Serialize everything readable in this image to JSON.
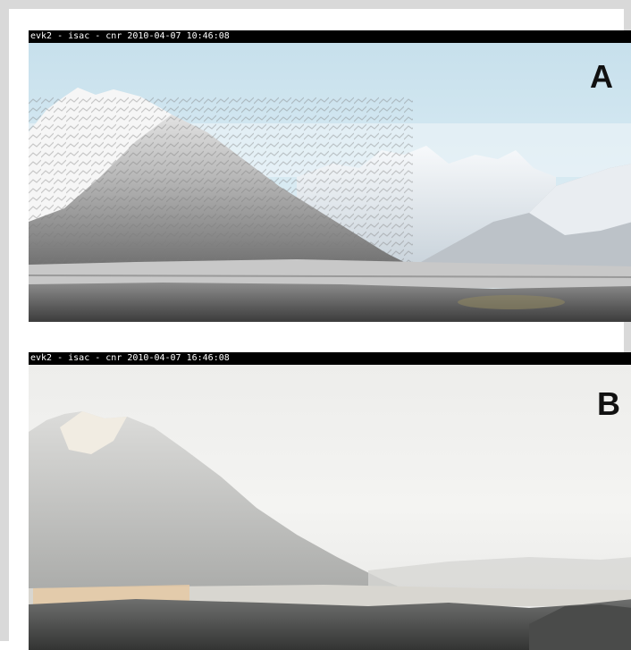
{
  "panels": [
    {
      "id": "A",
      "caption": "evk2 - isac - cnr 2010-04-07 10:46:08",
      "label": "A",
      "scene": "clear-sky-mountain-view"
    },
    {
      "id": "B",
      "caption": "evk2 - isac - cnr 2010-04-07 16:46:08",
      "label": "B",
      "scene": "hazy-mountain-view"
    }
  ],
  "colors": {
    "frame": "#d9d9d9",
    "caption_bg": "#000000",
    "caption_text": "#ffffff",
    "sky_clear": "#cde3ee",
    "sky_hazy": "#f2f2f0"
  }
}
